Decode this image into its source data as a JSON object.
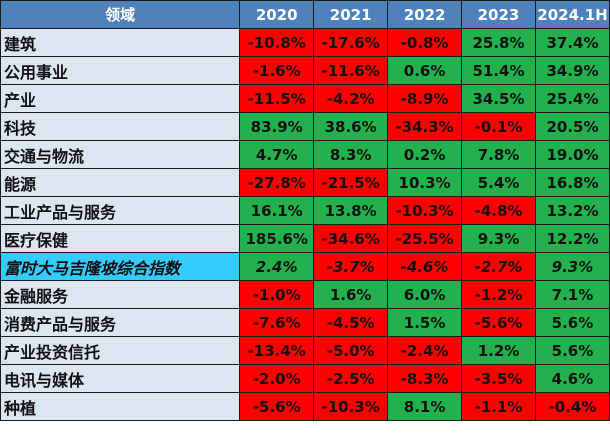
{
  "chart_data": {
    "type": "table",
    "columns": [
      "领域",
      "2020",
      "2021",
      "2022",
      "2023",
      "2024.1H"
    ],
    "highlight_row": "富时大马吉隆坡综合指数",
    "colors": {
      "header": "#4f81bd",
      "label": "#dce6f1",
      "positive": "#22b14c",
      "negative": "#ff0000",
      "highlight": "#33ccff"
    },
    "rows": [
      {
        "name": "建筑",
        "values": [
          "-10.8%",
          "-17.6%",
          "-0.8%",
          "25.8%",
          "37.4%"
        ]
      },
      {
        "name": "公用事业",
        "values": [
          "-1.6%",
          "-11.6%",
          "0.6%",
          "51.4%",
          "34.9%"
        ]
      },
      {
        "name": "产业",
        "values": [
          "-11.5%",
          "-4.2%",
          "-8.9%",
          "34.5%",
          "25.4%"
        ]
      },
      {
        "name": "科技",
        "values": [
          "83.9%",
          "38.6%",
          "-34.3%",
          "-0.1%",
          "20.5%"
        ]
      },
      {
        "name": "交通与物流",
        "values": [
          "4.7%",
          "8.3%",
          "0.2%",
          "7.8%",
          "19.0%"
        ]
      },
      {
        "name": "能源",
        "values": [
          "-27.8%",
          "-21.5%",
          "10.3%",
          "5.4%",
          "16.8%"
        ]
      },
      {
        "name": "工业产品与服务",
        "values": [
          "16.1%",
          "13.8%",
          "-10.3%",
          "-4.8%",
          "13.2%"
        ]
      },
      {
        "name": "医疗保健",
        "values": [
          "185.6%",
          "-34.6%",
          "-25.5%",
          "9.3%",
          "12.2%"
        ]
      },
      {
        "name": "富时大马吉隆坡综合指数",
        "values": [
          "2.4%",
          "-3.7%",
          "-4.6%",
          "-2.7%",
          "9.3%"
        ]
      },
      {
        "name": "金融服务",
        "values": [
          "-1.0%",
          "1.6%",
          "6.0%",
          "-1.2%",
          "7.1%"
        ]
      },
      {
        "name": "消费产品与服务",
        "values": [
          "-7.6%",
          "-4.5%",
          "1.5%",
          "-5.6%",
          "5.6%"
        ]
      },
      {
        "name": "产业投资信托",
        "values": [
          "-13.4%",
          "-5.0%",
          "-2.4%",
          "1.2%",
          "5.6%"
        ]
      },
      {
        "name": "电讯与媒体",
        "values": [
          "-2.0%",
          "-2.5%",
          "-8.3%",
          "-3.5%",
          "4.6%"
        ]
      },
      {
        "name": "种植",
        "values": [
          "-5.6%",
          "-10.3%",
          "8.1%",
          "-1.1%",
          "-0.4%"
        ]
      }
    ]
  }
}
